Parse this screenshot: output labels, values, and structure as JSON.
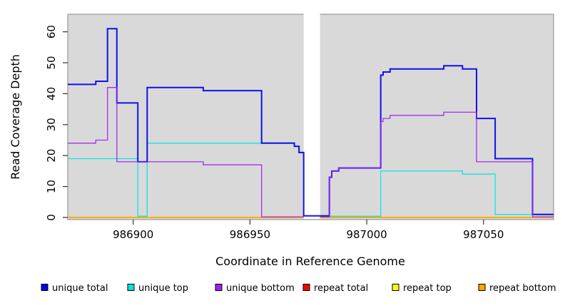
{
  "chart_data": {
    "type": "line",
    "subtype": "step",
    "title": "",
    "xlabel": "Coordinate in Reference Genome",
    "ylabel": "Read Coverage Depth",
    "xlim": [
      986872,
      987080
    ],
    "ylim": [
      0,
      65.7
    ],
    "xticks": [
      986900,
      986950,
      987000,
      987050
    ],
    "yticks": [
      0,
      10,
      20,
      30,
      40,
      50,
      60
    ],
    "grid": false,
    "plot_bg": "#D9D9D9",
    "box_color": "#999999",
    "tick_color": "#333333",
    "legend_position": "bottom",
    "gap_region": {
      "x_from": 986973,
      "x_to": 986980,
      "color": "#FFFFFF"
    },
    "render_order": [
      "repeat total",
      "repeat top",
      "repeat bottom",
      "unique top",
      "unique total",
      "unique bottom"
    ],
    "series": [
      {
        "name": "unique total",
        "color": "#0000EE",
        "width": 2,
        "segments": [
          {
            "steps": [
              [
                986872,
                43
              ],
              [
                986884,
                44
              ],
              [
                986889,
                61
              ],
              [
                986893,
                37
              ],
              [
                986902,
                18
              ],
              [
                986906,
                42
              ],
              [
                986930,
                41
              ],
              [
                986955,
                24
              ],
              [
                986969,
                23
              ],
              [
                986971,
                21
              ],
              [
                986973,
                0.5
              ],
              [
                986984,
                13
              ],
              [
                986985,
                15
              ],
              [
                986988,
                16
              ],
              [
                987006,
                46
              ],
              [
                987007,
                47
              ],
              [
                987010,
                48
              ],
              [
                987033,
                49
              ],
              [
                987041,
                48
              ],
              [
                987047,
                32
              ],
              [
                987055,
                19
              ],
              [
                987071,
                1
              ]
            ],
            "end": 987080
          }
        ]
      },
      {
        "name": "unique top",
        "color": "#00E5E5",
        "width": 1.3,
        "segments": [
          {
            "steps": [
              [
                986872,
                19
              ],
              [
                986902,
                0.4
              ],
              [
                986906,
                24
              ],
              [
                986969,
                23
              ],
              [
                986971,
                21
              ]
            ],
            "end": 986973
          },
          {
            "steps": [
              [
                986980,
                0.4
              ],
              [
                987006,
                15
              ],
              [
                987041,
                14
              ],
              [
                987055,
                1
              ]
            ],
            "end": 987080
          }
        ]
      },
      {
        "name": "unique bottom",
        "color": "#A020F0",
        "width": 1.3,
        "segments": [
          {
            "steps": [
              [
                986872,
                24
              ],
              [
                986884,
                25
              ],
              [
                986889,
                42
              ],
              [
                986893,
                18
              ],
              [
                986930,
                17
              ],
              [
                986955,
                0.2
              ]
            ],
            "end": 986973
          },
          {
            "steps": [
              [
                986980,
                0.2
              ],
              [
                986984,
                13
              ],
              [
                986985,
                15
              ],
              [
                986988,
                16
              ],
              [
                987006,
                31
              ],
              [
                987007,
                32
              ],
              [
                987010,
                33
              ],
              [
                987033,
                34
              ],
              [
                987047,
                18
              ],
              [
                987071,
                0.2
              ]
            ],
            "end": 987080
          }
        ]
      },
      {
        "name": "repeat total",
        "color": "#FF0000",
        "width": 1.3,
        "segments": [
          {
            "steps": [
              [
                986872,
                0
              ]
            ],
            "end": 986973
          },
          {
            "steps": [
              [
                986980,
                0
              ]
            ],
            "end": 987080
          }
        ]
      },
      {
        "name": "repeat top",
        "color": "#FFFF00",
        "width": 1.4,
        "segments": [
          {
            "steps": [
              [
                986872,
                0
              ]
            ],
            "end": 986973
          },
          {
            "steps": [
              [
                986980,
                0
              ]
            ],
            "end": 987080
          }
        ]
      },
      {
        "name": "repeat bottom",
        "color": "#FFA500",
        "width": 1.8,
        "segments": [
          {
            "steps": [
              [
                986872,
                0
              ]
            ],
            "end": 986973
          },
          {
            "steps": [
              [
                986980,
                0
              ]
            ],
            "end": 987080
          }
        ]
      }
    ]
  }
}
